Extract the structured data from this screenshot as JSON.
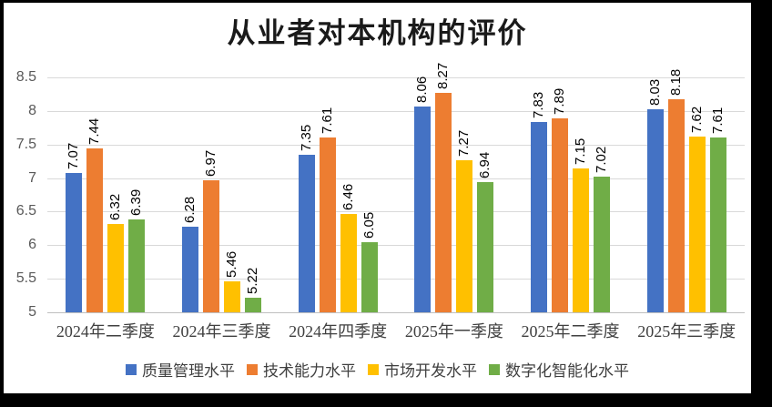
{
  "page": {
    "background": "#000000",
    "card_background": "#ffffff"
  },
  "chart_data": {
    "type": "bar",
    "title": "从业者对本机构的评价",
    "categories": [
      "2024年二季度",
      "2024年三季度",
      "2024年四季度",
      "2025年一季度",
      "2025年二季度",
      "2025年三季度"
    ],
    "series": [
      {
        "name": "质量管理水平",
        "color": "#4472C4",
        "values": [
          7.07,
          6.28,
          7.35,
          8.06,
          7.83,
          8.03
        ]
      },
      {
        "name": "技术能力水平",
        "color": "#ED7D31",
        "values": [
          7.44,
          6.97,
          7.61,
          8.27,
          7.89,
          8.18
        ]
      },
      {
        "name": "市场开发水平",
        "color": "#FFC000",
        "values": [
          6.32,
          5.46,
          6.46,
          7.27,
          7.15,
          7.62
        ]
      },
      {
        "name": "数字化智能化水平",
        "color": "#70AD47",
        "values": [
          6.39,
          5.22,
          6.05,
          6.94,
          7.02,
          7.61
        ]
      }
    ],
    "ylim": [
      5,
      8.5
    ],
    "yticks": [
      5,
      5.5,
      6,
      6.5,
      7,
      7.5,
      8,
      8.5
    ],
    "grid": true,
    "legend_position": "bottom",
    "data_labels": {
      "visible": true,
      "rotation": -90,
      "decimals": 2
    },
    "colors": {
      "gridline": "#D9D9D9",
      "baseline": "#BFBFBF",
      "ytick_text": "#595959",
      "xtick_text": "#404040",
      "data_label_text": "#000000",
      "title_text": "#1a1a1a",
      "legend_text": "#404040"
    }
  }
}
